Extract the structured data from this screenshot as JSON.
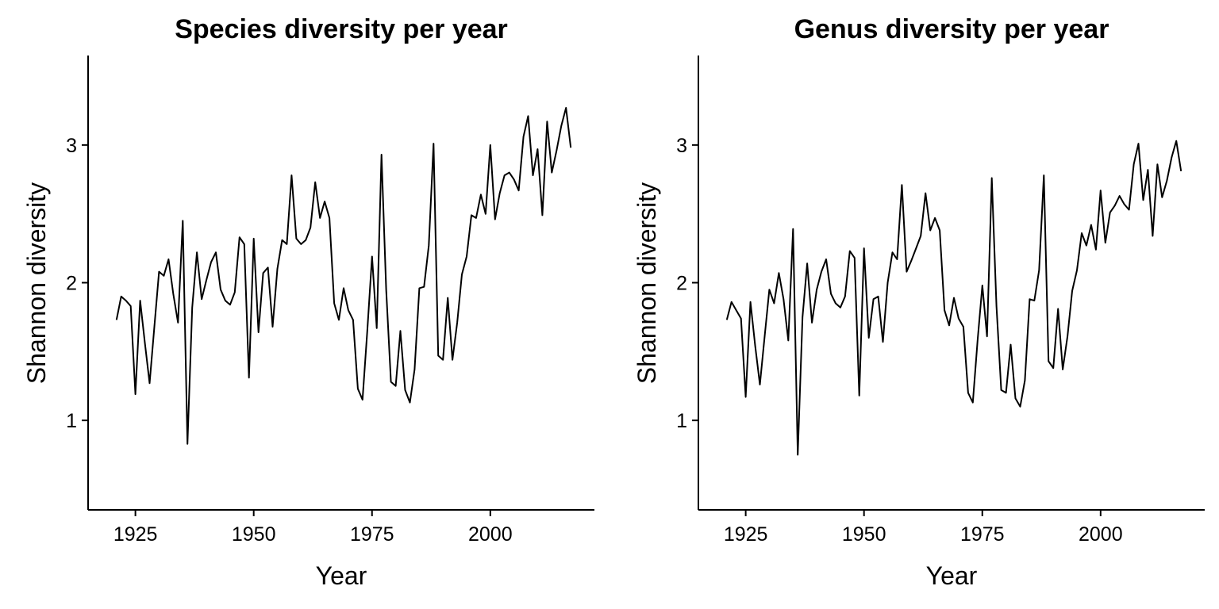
{
  "chart_data": [
    {
      "type": "line",
      "title": "Species diversity per year",
      "xlabel": "Year",
      "ylabel": "Shannon diversity",
      "xlim": [
        1915,
        2022
      ],
      "ylim": [
        0.35,
        3.65
      ],
      "xticks": [
        1925,
        1950,
        1975,
        2000
      ],
      "yticks": [
        1,
        2,
        3
      ],
      "grid": false,
      "series": [
        {
          "color": "#000000",
          "x": [
            1921,
            1922,
            1923,
            1924,
            1925,
            1926,
            1927,
            1928,
            1929,
            1930,
            1931,
            1932,
            1933,
            1934,
            1935,
            1936,
            1937,
            1938,
            1939,
            1940,
            1941,
            1942,
            1943,
            1944,
            1945,
            1946,
            1947,
            1948,
            1949,
            1950,
            1951,
            1952,
            1953,
            1954,
            1955,
            1956,
            1957,
            1958,
            1959,
            1960,
            1961,
            1962,
            1963,
            1964,
            1965,
            1966,
            1967,
            1968,
            1969,
            1970,
            1971,
            1972,
            1973,
            1974,
            1975,
            1976,
            1977,
            1978,
            1979,
            1980,
            1981,
            1982,
            1983,
            1984,
            1985,
            1986,
            1987,
            1988,
            1989,
            1990,
            1991,
            1992,
            1993,
            1994,
            1995,
            1996,
            1997,
            1998,
            1999,
            2000,
            2001,
            2002,
            2003,
            2004,
            2005,
            2006,
            2007,
            2008,
            2009,
            2010,
            2011,
            2012,
            2013,
            2014,
            2015,
            2016,
            2017
          ],
          "y": [
            1.73,
            1.9,
            1.87,
            1.83,
            1.19,
            1.87,
            1.56,
            1.27,
            1.68,
            2.08,
            2.05,
            2.17,
            1.92,
            1.71,
            2.45,
            0.83,
            1.82,
            2.22,
            1.88,
            2.02,
            2.15,
            2.22,
            1.95,
            1.87,
            1.84,
            1.93,
            2.33,
            2.28,
            1.31,
            2.32,
            1.64,
            2.07,
            2.11,
            1.68,
            2.1,
            2.31,
            2.28,
            2.78,
            2.32,
            2.28,
            2.31,
            2.4,
            2.73,
            2.47,
            2.59,
            2.47,
            1.85,
            1.73,
            1.96,
            1.8,
            1.73,
            1.23,
            1.15,
            1.65,
            2.19,
            1.67,
            2.93,
            1.95,
            1.28,
            1.25,
            1.65,
            1.22,
            1.13,
            1.37,
            1.96,
            1.97,
            2.27,
            3.01,
            1.47,
            1.44,
            1.89,
            1.44,
            1.71,
            2.06,
            2.19,
            2.49,
            2.47,
            2.64,
            2.5,
            3.0,
            2.46,
            2.65,
            2.78,
            2.8,
            2.75,
            2.67,
            3.06,
            3.21,
            2.78,
            2.97,
            2.49,
            3.17,
            2.8,
            2.96,
            3.14,
            3.27,
            2.98
          ]
        }
      ]
    },
    {
      "type": "line",
      "title": "Genus diversity per year",
      "xlabel": "Year",
      "ylabel": "Shannon diversity",
      "xlim": [
        1915,
        2022
      ],
      "ylim": [
        0.35,
        3.65
      ],
      "xticks": [
        1925,
        1950,
        1975,
        2000
      ],
      "yticks": [
        1,
        2,
        3
      ],
      "grid": false,
      "series": [
        {
          "color": "#000000",
          "x": [
            1921,
            1922,
            1923,
            1924,
            1925,
            1926,
            1927,
            1928,
            1929,
            1930,
            1931,
            1932,
            1933,
            1934,
            1935,
            1936,
            1937,
            1938,
            1939,
            1940,
            1941,
            1942,
            1943,
            1944,
            1945,
            1946,
            1947,
            1948,
            1949,
            1950,
            1951,
            1952,
            1953,
            1954,
            1955,
            1956,
            1957,
            1958,
            1959,
            1960,
            1961,
            1962,
            1963,
            1964,
            1965,
            1966,
            1967,
            1968,
            1969,
            1970,
            1971,
            1972,
            1973,
            1974,
            1975,
            1976,
            1977,
            1978,
            1979,
            1980,
            1981,
            1982,
            1983,
            1984,
            1985,
            1986,
            1987,
            1988,
            1989,
            1990,
            1991,
            1992,
            1993,
            1994,
            1995,
            1996,
            1997,
            1998,
            1999,
            2000,
            2001,
            2002,
            2003,
            2004,
            2005,
            2006,
            2007,
            2008,
            2009,
            2010,
            2011,
            2012,
            2013,
            2014,
            2015,
            2016,
            2017
          ],
          "y": [
            1.73,
            1.86,
            1.8,
            1.74,
            1.17,
            1.86,
            1.54,
            1.26,
            1.61,
            1.95,
            1.85,
            2.07,
            1.88,
            1.58,
            2.39,
            0.75,
            1.75,
            2.14,
            1.71,
            1.95,
            2.08,
            2.17,
            1.92,
            1.85,
            1.82,
            1.9,
            2.23,
            2.18,
            1.18,
            2.25,
            1.6,
            1.88,
            1.9,
            1.57,
            2.0,
            2.22,
            2.17,
            2.71,
            2.08,
            2.16,
            2.25,
            2.34,
            2.65,
            2.38,
            2.47,
            2.38,
            1.8,
            1.69,
            1.89,
            1.74,
            1.68,
            1.2,
            1.13,
            1.58,
            1.98,
            1.61,
            2.76,
            1.83,
            1.22,
            1.2,
            1.55,
            1.16,
            1.1,
            1.29,
            1.88,
            1.87,
            2.09,
            2.78,
            1.43,
            1.38,
            1.81,
            1.37,
            1.61,
            1.94,
            2.09,
            2.36,
            2.27,
            2.42,
            2.24,
            2.67,
            2.29,
            2.51,
            2.56,
            2.63,
            2.57,
            2.53,
            2.86,
            3.01,
            2.6,
            2.82,
            2.34,
            2.86,
            2.62,
            2.74,
            2.91,
            3.03,
            2.81
          ]
        }
      ]
    }
  ]
}
